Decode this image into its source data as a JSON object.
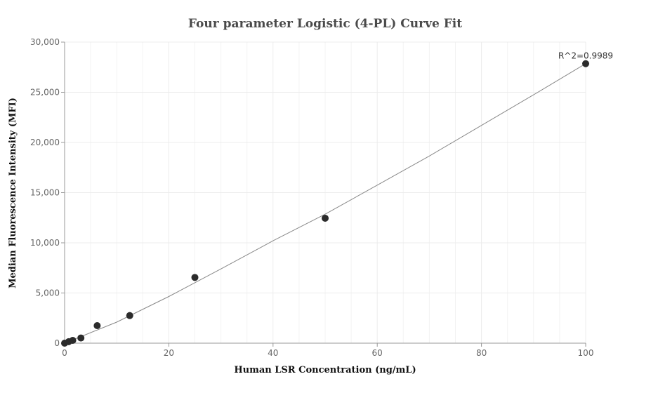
{
  "chart_data": {
    "type": "scatter",
    "title": "Four parameter Logistic (4-PL) Curve Fit",
    "xlabel": "Human LSR Concentration (ng/mL)",
    "ylabel": "Median Fluorescence Intensity (MFI)",
    "xlim": [
      0,
      100
    ],
    "ylim": [
      0,
      30000
    ],
    "x_ticks": [
      0,
      20,
      40,
      60,
      80,
      100
    ],
    "x_tick_labels": [
      "0",
      "20",
      "40",
      "60",
      "80",
      "100"
    ],
    "y_ticks": [
      0,
      5000,
      10000,
      15000,
      20000,
      25000,
      30000
    ],
    "y_tick_labels": [
      "0",
      "5,000",
      "10,000",
      "15,000",
      "20,000",
      "25,000",
      "30,000"
    ],
    "grid": true,
    "points": {
      "x": [
        0,
        0.78,
        1.56,
        3.13,
        6.25,
        12.5,
        25,
        50,
        100
      ],
      "y": [
        0,
        150,
        280,
        520,
        1750,
        2750,
        6550,
        12450,
        27850
      ]
    },
    "fit_curve": {
      "x": [
        0,
        10,
        20,
        30,
        40,
        50,
        60,
        70,
        80,
        90,
        100
      ],
      "y": [
        0,
        2100,
        4650,
        7400,
        10200,
        12850,
        15750,
        18650,
        21700,
        24750,
        27850
      ]
    },
    "annotation": "R^2=0.9989",
    "colors": {
      "points": "#2b2b2b",
      "curve": "#888888",
      "grid": "#ececec",
      "axis": "#999999"
    }
  }
}
